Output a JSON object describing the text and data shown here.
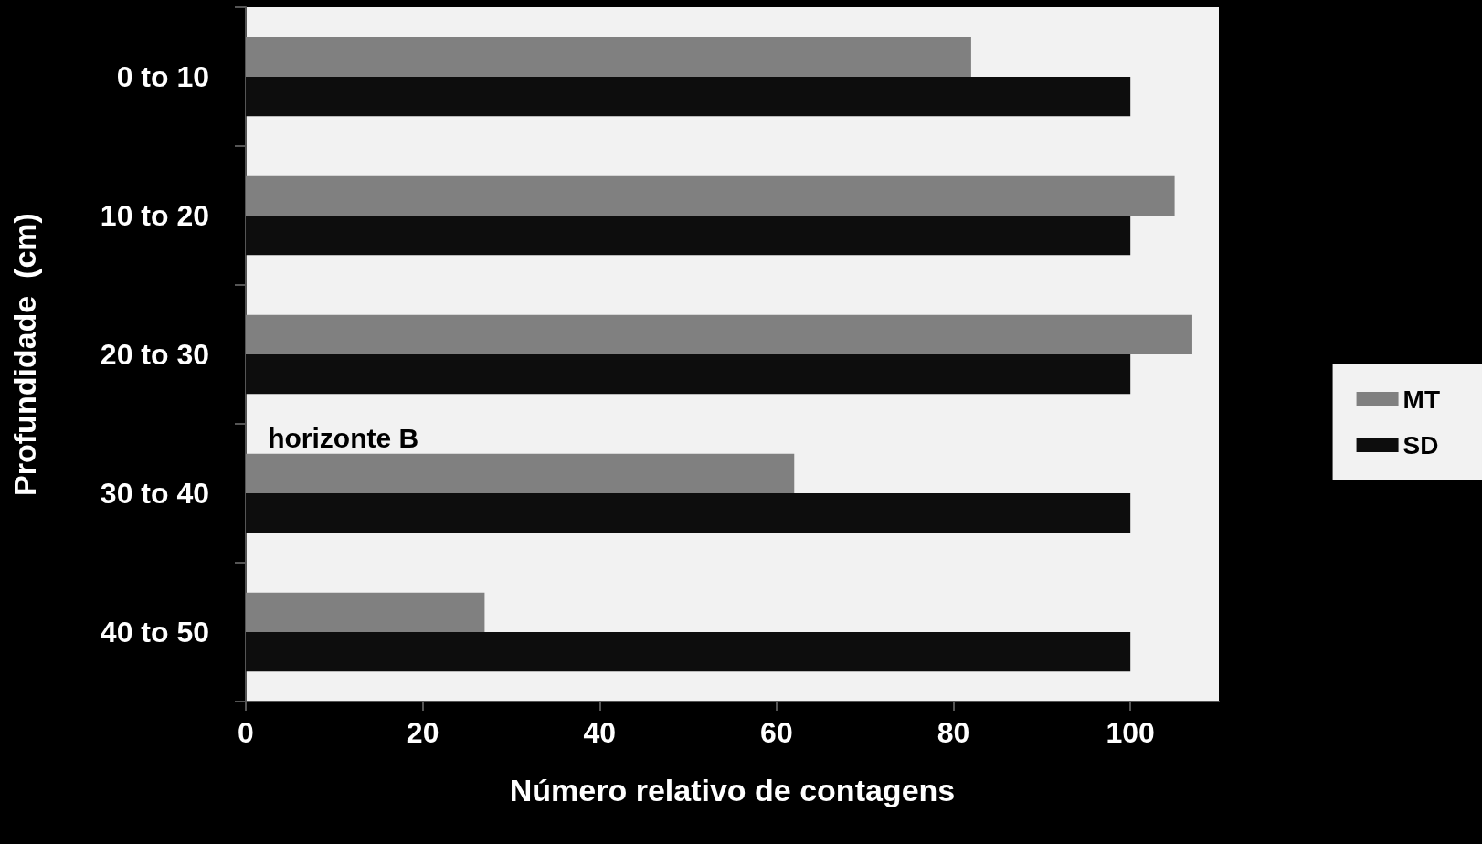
{
  "chart_data": {
    "type": "bar",
    "orientation": "horizontal",
    "xlabel": "Número relativo de contagens",
    "ylabel": "Profundidade  (cm)",
    "categories": [
      "0 to 10",
      "10 to 20",
      "20 to 30",
      "30 to 40",
      "40 to 50"
    ],
    "series": [
      {
        "name": "MT",
        "color": "#808080",
        "values": [
          82,
          105,
          107,
          62,
          27
        ]
      },
      {
        "name": "SD",
        "color": "#0d0d0d",
        "values": [
          100,
          100,
          100,
          100,
          100
        ]
      }
    ],
    "xlim": [
      0,
      110
    ],
    "xticks": [
      0,
      20,
      40,
      60,
      80,
      100
    ],
    "grid": false,
    "legend": "right",
    "annotations": [
      {
        "text": "horizonte B",
        "x": 2.5,
        "y": "30 to 40"
      }
    ]
  }
}
